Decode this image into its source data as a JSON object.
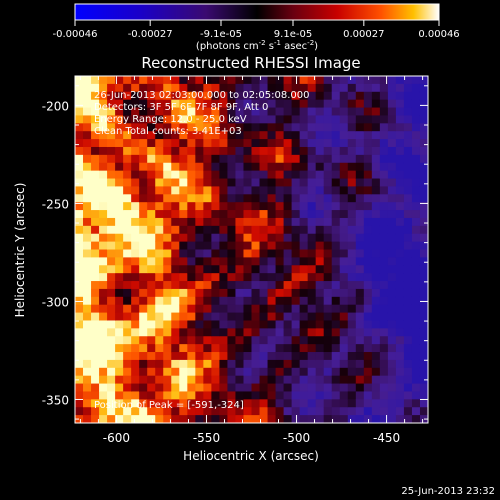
{
  "chart_data": {
    "type": "heatmap",
    "title": "Reconstructed RHESSI Image",
    "xlabel": "Heliocentric X (arcsec)",
    "ylabel": "Heliocentric Y (arcsec)",
    "x_ticks": [
      "-600",
      "-550",
      "-500",
      "-450"
    ],
    "x_tick_values": [
      -600,
      -550,
      -500,
      -450
    ],
    "y_ticks": [
      "-200",
      "-250",
      "-300",
      "-350"
    ],
    "y_tick_values": [
      -200,
      -250,
      -300,
      -350
    ],
    "xlim": [
      -623,
      -427
    ],
    "ylim": [
      -362,
      -185
    ],
    "colorbar": {
      "ticks": [
        "-0.00046",
        "-0.00027",
        "-9.1e-05",
        "9.1e-05",
        "0.00027",
        "0.00046"
      ],
      "tick_values": [
        -0.00046,
        -0.00027,
        -9.1e-05,
        9.1e-05,
        0.00027,
        0.00046
      ],
      "range": [
        -0.00046,
        0.00046
      ],
      "units_prefix": "(photons cm",
      "units_exp1": "-2",
      "units_mid": " s",
      "units_exp2": "-1",
      "units_mid2": " asec",
      "units_exp3": "-2",
      "units_suffix": ")"
    },
    "annotations": {
      "time_range": "26-Jun-2013 02:03:00.000 to 02:05:08.000",
      "detectors": "Detectors: 3F 5F 6F 7F 8F 9F, Att 0",
      "energy": "Energy Range: 12.0 - 25.0 keV",
      "clean": "Clean   Total counts: 3.41E+03",
      "peak": "Position of Peak = [-591,-324]"
    },
    "peak_position": [
      -591,
      -324
    ]
  },
  "footer": {
    "timestamp": "25-Jun-2013 23:32"
  }
}
